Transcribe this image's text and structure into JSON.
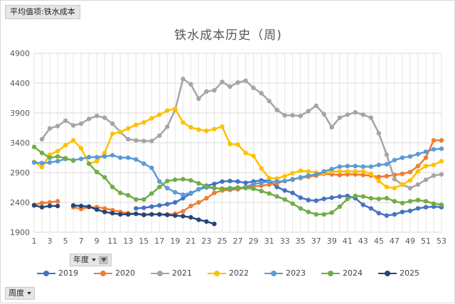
{
  "pivot_tag": "平均值项:铁水成本",
  "field_buttons": {
    "year": "年度",
    "week": "周度"
  },
  "chart_data": {
    "type": "line",
    "title": "铁水成本历史（周)",
    "xlabel": "",
    "ylabel": "",
    "ylim": [
      1900,
      4900
    ],
    "yticks": [
      1900,
      2400,
      2900,
      3400,
      3900,
      4400,
      4900
    ],
    "xlim": [
      1,
      53
    ],
    "xticks": [
      1,
      3,
      5,
      7,
      9,
      11,
      13,
      15,
      17,
      19,
      21,
      23,
      25,
      27,
      29,
      31,
      33,
      35,
      37,
      39,
      41,
      43,
      45,
      47,
      49,
      51,
      53
    ],
    "grid": true,
    "legend_position": "bottom",
    "x": [
      1,
      2,
      3,
      4,
      5,
      6,
      7,
      8,
      9,
      10,
      11,
      12,
      13,
      14,
      15,
      16,
      17,
      18,
      19,
      20,
      21,
      22,
      23,
      24,
      25,
      26,
      27,
      28,
      29,
      30,
      31,
      32,
      33,
      34,
      35,
      36,
      37,
      38,
      39,
      40,
      41,
      42,
      43,
      44,
      45,
      46,
      47,
      48,
      49,
      50,
      51,
      52,
      53
    ],
    "series": [
      {
        "name": "2019",
        "color": "#4472c4",
        "values": [
          null,
          null,
          null,
          null,
          null,
          null,
          null,
          null,
          null,
          null,
          null,
          null,
          null,
          2300,
          2310,
          2330,
          2350,
          2370,
          2400,
          2470,
          2550,
          2620,
          2680,
          2710,
          2750,
          2760,
          2750,
          2730,
          2750,
          2770,
          2760,
          2660,
          2600,
          2560,
          2480,
          2440,
          2430,
          2460,
          2480,
          2500,
          2510,
          2470,
          2360,
          2300,
          2220,
          2180,
          2200,
          2240,
          2260,
          2300,
          2320,
          2330,
          2320
        ]
      },
      {
        "name": "2020",
        "color": "#ed7d31",
        "values": [
          2360,
          2390,
          2400,
          2420,
          null,
          2320,
          2290,
          2320,
          2320,
          2300,
          2270,
          2240,
          2220,
          2210,
          2200,
          2200,
          2200,
          2200,
          2210,
          2250,
          2340,
          2400,
          2470,
          2560,
          2600,
          2610,
          2620,
          2650,
          2670,
          2680,
          2700,
          2720,
          2760,
          2790,
          2810,
          2830,
          2850,
          2880,
          2870,
          2860,
          2870,
          2870,
          2860,
          2850,
          2830,
          2840,
          2860,
          2880,
          2910,
          3010,
          3150,
          3440,
          3440
        ]
      },
      {
        "name": "2021",
        "color": "#a5a5a5",
        "values": [
          null,
          3460,
          3640,
          3680,
          3770,
          3690,
          3720,
          3800,
          3850,
          3820,
          3720,
          3580,
          3460,
          3440,
          3430,
          3430,
          3520,
          3670,
          3950,
          4470,
          4380,
          4140,
          4260,
          4280,
          4420,
          4340,
          4410,
          4440,
          4320,
          4230,
          4100,
          3950,
          3860,
          3860,
          3850,
          3930,
          4020,
          3880,
          3660,
          3820,
          3870,
          3910,
          3870,
          3820,
          3560,
          3200,
          2790,
          2700,
          2640,
          2700,
          2780,
          2850,
          2870
        ]
      },
      {
        "name": "2022",
        "color": "#ffc000",
        "values": [
          3080,
          2990,
          3200,
          3260,
          3360,
          3440,
          3310,
          3050,
          3090,
          3230,
          3550,
          3580,
          3640,
          3700,
          3740,
          3810,
          3870,
          3940,
          3970,
          3740,
          3660,
          3620,
          3600,
          3630,
          3670,
          3380,
          3370,
          3230,
          3180,
          2970,
          2810,
          2800,
          2840,
          2890,
          2930,
          2920,
          2900,
          2890,
          2920,
          2920,
          2920,
          2920,
          2920,
          2880,
          2760,
          2660,
          2640,
          2700,
          2770,
          2920,
          3010,
          3030,
          3090
        ]
      },
      {
        "name": "2023",
        "color": "#5b9bd5",
        "values": [
          3070,
          3060,
          3070,
          3090,
          3130,
          3110,
          3130,
          3160,
          3160,
          3170,
          3190,
          3150,
          3150,
          3120,
          3050,
          2980,
          2750,
          2640,
          2570,
          2530,
          2560,
          2620,
          2650,
          2640,
          2630,
          2630,
          2640,
          2660,
          2710,
          2730,
          2750,
          2750,
          2760,
          2780,
          2820,
          2850,
          2870,
          2920,
          2960,
          3000,
          3010,
          3010,
          3000,
          3000,
          3030,
          3040,
          3110,
          3150,
          3170,
          3210,
          3250,
          3290,
          3300
        ]
      },
      {
        "name": "2024",
        "color": "#70ad47",
        "values": [
          3330,
          3230,
          3150,
          3170,
          3140,
          3100,
          null,
          3050,
          2910,
          2820,
          2660,
          2560,
          2520,
          2450,
          2450,
          2550,
          2660,
          2760,
          2780,
          2790,
          2770,
          2720,
          2670,
          2640,
          2630,
          2640,
          2650,
          2640,
          2630,
          2590,
          2550,
          2500,
          2450,
          2380,
          2300,
          2240,
          2200,
          2200,
          2230,
          2330,
          2460,
          2510,
          2500,
          2470,
          2460,
          2470,
          2420,
          2390,
          2420,
          2440,
          2420,
          2380,
          2360
        ]
      },
      {
        "name": "2025",
        "color": "#264478",
        "values": [
          2350,
          2320,
          2340,
          2340,
          null,
          2350,
          2340,
          2330,
          2280,
          2240,
          2220,
          2200,
          2200,
          2210,
          2190,
          2200,
          2200,
          2190,
          2180,
          2170,
          2150,
          2110,
          2080,
          2040,
          null,
          null,
          null,
          null,
          null,
          null,
          null,
          null,
          null,
          null,
          null,
          null,
          null,
          null,
          null,
          null,
          null,
          null,
          null,
          null,
          null,
          null,
          null,
          null,
          null,
          null,
          null,
          null,
          null
        ]
      }
    ]
  }
}
